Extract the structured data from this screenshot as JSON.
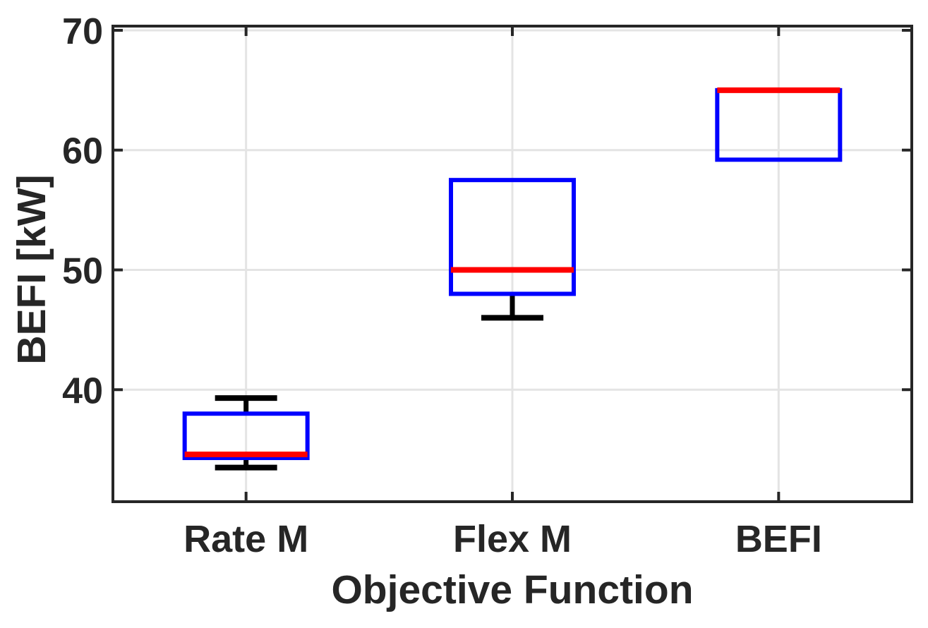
{
  "figure": {
    "background": "#ffffff"
  },
  "chart_data": {
    "type": "box",
    "title": "",
    "xlabel": "Objective Function",
    "ylabel": "BEFI [kW]",
    "categories": [
      "Rate M",
      "Flex M",
      "BEFI"
    ],
    "series": [
      {
        "category": "Rate M",
        "whisker_low": 33.5,
        "q1": 34.3,
        "median": 34.6,
        "q3": 38.0,
        "whisker_high": 39.3
      },
      {
        "category": "Flex M",
        "whisker_low": 46.0,
        "q1": 48.0,
        "median": 50.0,
        "q3": 57.5,
        "whisker_high": 57.5
      },
      {
        "category": "BEFI",
        "whisker_low": 59.2,
        "q1": 59.2,
        "median": 65.0,
        "q3": 65.0,
        "whisker_high": 65.0
      }
    ],
    "ylim": [
      30.65,
      70.35
    ],
    "yticks": [
      40,
      50,
      60,
      70
    ],
    "xlim_categories": [
      0.5,
      3.5
    ],
    "grid": true,
    "legend": null,
    "colors": {
      "box": "#0000ff",
      "median": "#ff0000",
      "whisker": "#000000",
      "grid": "#e4e4e4",
      "axis": "#262626",
      "text": "#262626",
      "background": "#ffffff"
    }
  }
}
